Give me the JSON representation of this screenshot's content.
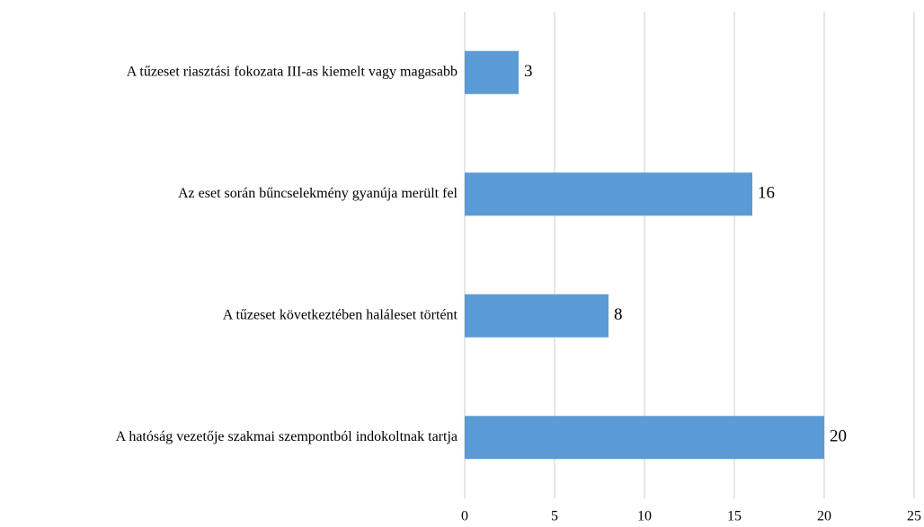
{
  "chart_data": {
    "type": "bar",
    "orientation": "horizontal",
    "categories": [
      "A tűzeset riasztási fokozata III-as kiemelt vagy magasabb",
      "Az eset során bűncselekmény gyanúja merült fel",
      "A tűzeset következtében haláleset történt",
      "A hatóság vezetője szakmai szempontból indokoltnak tartja"
    ],
    "values": [
      3,
      16,
      8,
      20
    ],
    "color": "#5b9bd5",
    "xlim": [
      0,
      25
    ],
    "xticks": [
      0,
      5,
      10,
      15,
      20,
      25
    ],
    "grid": true,
    "data_labels": true
  }
}
